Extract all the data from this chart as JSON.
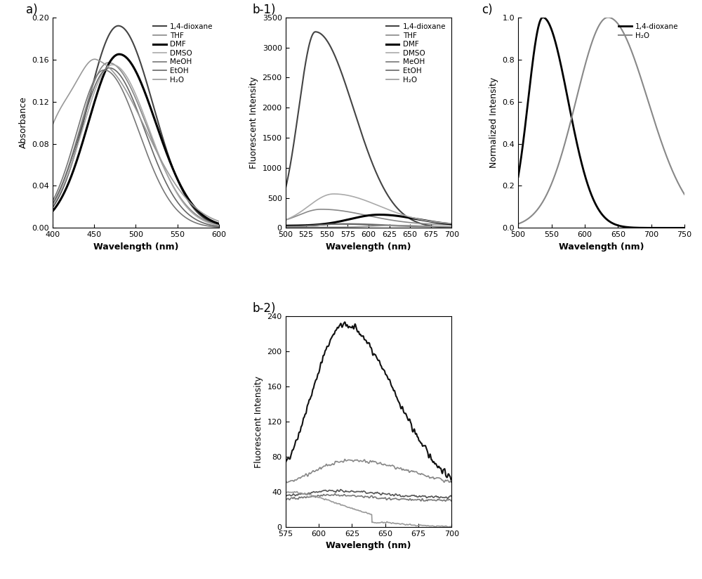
{
  "panel_a": {
    "xlabel": "Wavelength (nm)",
    "ylabel": "Absorbance",
    "xlim": [
      400,
      600
    ],
    "ylim": [
      0.0,
      0.2
    ],
    "yticks": [
      0.0,
      0.04,
      0.08,
      0.12,
      0.16,
      0.2
    ],
    "xticks": [
      400,
      450,
      500,
      550,
      600
    ],
    "label": "a)",
    "legend": [
      "1,4-dioxane",
      "THF",
      "DMF",
      "DMSO",
      "MeOH",
      "EtOH",
      "H₂O"
    ],
    "colors": [
      "#444444",
      "#888888",
      "#000000",
      "#aaaaaa",
      "#777777",
      "#666666",
      "#999999"
    ],
    "linewidths": [
      1.5,
      1.2,
      2.2,
      1.2,
      1.2,
      1.2,
      1.2
    ]
  },
  "panel_b1": {
    "xlabel": "Wavelength (nm)",
    "ylabel": "Fluorescent Intensity",
    "xlim": [
      500,
      700
    ],
    "ylim": [
      0,
      3500
    ],
    "yticks": [
      0,
      500,
      1000,
      1500,
      2000,
      2500,
      3000,
      3500
    ],
    "xticks": [
      500,
      525,
      550,
      575,
      600,
      625,
      650,
      675,
      700
    ],
    "label": "b-1)",
    "legend": [
      "1,4-dioxane",
      "THF",
      "DMF",
      "DMSO",
      "MeOH",
      "EtOH",
      "H₂O"
    ],
    "colors": [
      "#444444",
      "#888888",
      "#000000",
      "#aaaaaa",
      "#777777",
      "#666666",
      "#999999"
    ],
    "linewidths": [
      1.5,
      1.2,
      2.2,
      1.2,
      1.2,
      1.2,
      1.2
    ]
  },
  "panel_b2": {
    "xlabel": "Wavelength (nm)",
    "ylabel": "Fluorescent Intensity",
    "xlim": [
      575,
      700
    ],
    "ylim": [
      0,
      240
    ],
    "yticks": [
      0,
      40,
      80,
      120,
      160,
      200,
      240
    ],
    "xticks": [
      575,
      600,
      625,
      650,
      675,
      700
    ],
    "label": "b-2)",
    "colors": [
      "#111111",
      "#888888",
      "#555555",
      "#777777",
      "#999999"
    ],
    "linewidths": [
      1.5,
      1.2,
      1.2,
      1.2,
      1.2
    ]
  },
  "panel_c": {
    "xlabel": "Wavelength (nm)",
    "ylabel": "Normalized Intensity",
    "xlim": [
      500,
      750
    ],
    "ylim": [
      0.0,
      1.0
    ],
    "yticks": [
      0.0,
      0.2,
      0.4,
      0.6,
      0.8,
      1.0
    ],
    "xticks": [
      500,
      550,
      600,
      650,
      700,
      750
    ],
    "label": "c)",
    "legend": [
      "1,4-dioxane",
      "H₂O"
    ],
    "colors": [
      "#000000",
      "#888888"
    ],
    "linewidths": [
      2.0,
      1.5
    ]
  }
}
